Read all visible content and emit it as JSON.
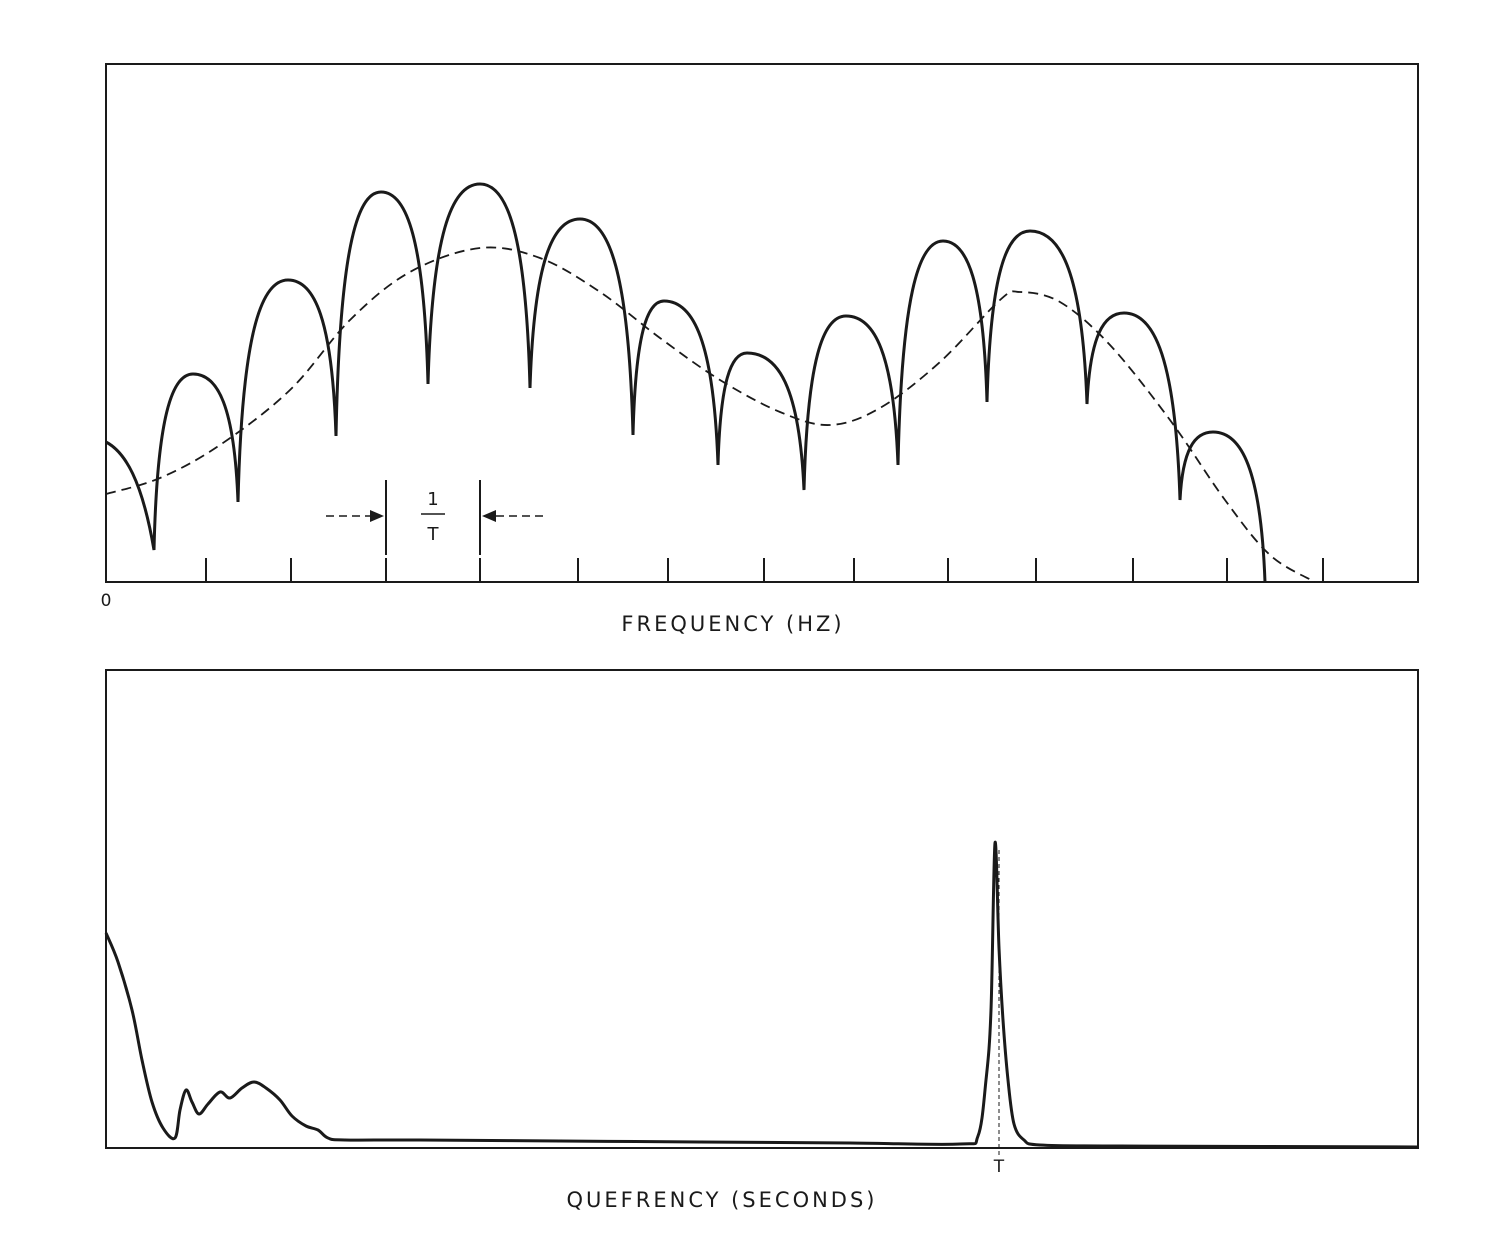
{
  "chart_data": [
    {
      "type": "line",
      "xlabel": "FREQUENCY (HZ)",
      "x_tick_labels": [
        "0"
      ],
      "annotation": {
        "numerator": "1",
        "denominator": "T"
      },
      "description_series": [
        {
          "style": "solid"
        },
        {
          "style": "dashed"
        }
      ]
    },
    {
      "type": "line",
      "xlabel": "QUEFRENCY (SECONDS)",
      "x_tick_labels": [
        "T"
      ],
      "description_series": [
        {
          "style": "solid"
        }
      ]
    }
  ],
  "colors": {
    "ink": "#1a1a1a",
    "background": "#ffffff"
  }
}
